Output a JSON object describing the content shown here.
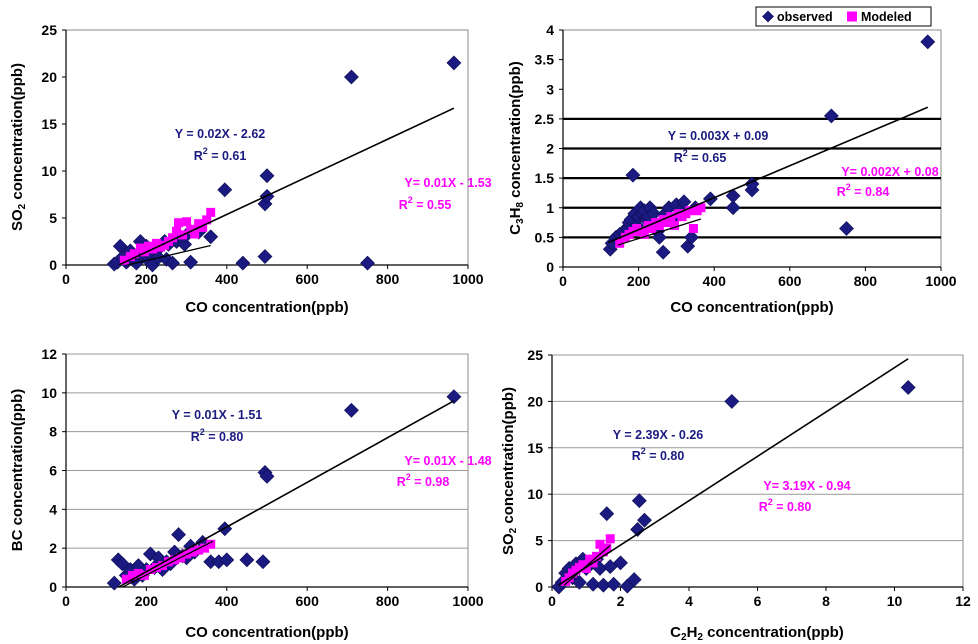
{
  "legend": {
    "items": [
      {
        "label": "observed",
        "color": "#1a1a80",
        "marker": "diamond"
      },
      {
        "label": "Modeled",
        "color": "#ff00ff",
        "marker": "square"
      }
    ]
  },
  "colors": {
    "observed": "#1a1a80",
    "modeled": "#ff00ff",
    "fit": "#000000",
    "gridline": "#000000"
  },
  "chart_data": [
    {
      "id": "so2-vs-co",
      "type": "scatter",
      "xlabel": "CO concentration(ppb)",
      "ylabel": {
        "pre": "SO",
        "sub": "2",
        "post": " concentration(ppb)"
      },
      "xlim": [
        0,
        1000
      ],
      "ylim": [
        0,
        25
      ],
      "xticks": [
        0,
        200,
        400,
        600,
        800,
        1000
      ],
      "yticks": [
        0,
        5,
        10,
        15,
        20,
        25
      ],
      "grid": "none",
      "observed": [
        [
          120,
          0.1
        ],
        [
          128,
          0.3
        ],
        [
          135,
          2.0
        ],
        [
          140,
          0.8
        ],
        [
          150,
          0.3
        ],
        [
          155,
          0.5
        ],
        [
          160,
          1.5
        ],
        [
          165,
          0.6
        ],
        [
          175,
          0.2
        ],
        [
          185,
          2.5
        ],
        [
          190,
          1.0
        ],
        [
          200,
          2.0
        ],
        [
          205,
          0.5
        ],
        [
          210,
          1.2
        ],
        [
          215,
          0.0
        ],
        [
          225,
          1.5
        ],
        [
          230,
          0.8
        ],
        [
          245,
          2.5
        ],
        [
          250,
          0.6
        ],
        [
          255,
          2.2
        ],
        [
          265,
          0.2
        ],
        [
          275,
          2.5
        ],
        [
          285,
          3.0
        ],
        [
          295,
          2.2
        ],
        [
          300,
          3.2
        ],
        [
          310,
          0.3
        ],
        [
          330,
          3.5
        ],
        [
          360,
          3.0
        ],
        [
          395,
          8.0
        ],
        [
          440,
          0.2
        ],
        [
          495,
          6.5
        ],
        [
          500,
          9.5
        ],
        [
          500,
          7.3
        ],
        [
          495,
          0.9
        ],
        [
          710,
          20.0
        ],
        [
          750,
          0.2
        ],
        [
          965,
          21.5
        ]
      ],
      "modeled": [
        [
          145,
          0.5
        ],
        [
          160,
          0.9
        ],
        [
          170,
          1.2
        ],
        [
          185,
          1.8
        ],
        [
          195,
          1.4
        ],
        [
          205,
          2.0
        ],
        [
          215,
          1.7
        ],
        [
          225,
          2.3
        ],
        [
          235,
          1.9
        ],
        [
          245,
          2.1
        ],
        [
          255,
          2.5
        ],
        [
          265,
          2.9
        ],
        [
          275,
          3.6
        ],
        [
          280,
          4.5
        ],
        [
          290,
          3.2
        ],
        [
          300,
          4.6
        ],
        [
          310,
          3.8
        ],
        [
          320,
          3.3
        ],
        [
          330,
          4.4
        ],
        [
          340,
          4.0
        ],
        [
          350,
          4.8
        ],
        [
          360,
          5.6
        ]
      ],
      "fits": [
        {
          "series": "observed",
          "slope": 0.02,
          "intercept": -2.62,
          "equation": "Y = 0.02X - 2.62",
          "r2_label": "R",
          "r2_sup": "2",
          "r2_value": " = 0.61",
          "from": 130,
          "to": 965
        },
        {
          "series": "modeled",
          "slope": 0.01,
          "intercept": -1.53,
          "equation": "Y= 0.01X - 1.53",
          "r2_label": "R",
          "r2_sup": "2",
          "r2_value": " = 0.55",
          "from": 140,
          "to": 360
        }
      ]
    },
    {
      "id": "c3h8-vs-co",
      "type": "scatter",
      "xlabel": "CO concentration(ppb)",
      "ylabel": {
        "pre": "C",
        "sub": "3",
        "mid": "H",
        "sub2": "8",
        "post": " concentration(ppb)"
      },
      "xlim": [
        0,
        1000
      ],
      "ylim": [
        0,
        4
      ],
      "xticks": [
        0,
        200,
        400,
        600,
        800,
        1000
      ],
      "yticks": [
        0,
        0.5,
        1,
        1.5,
        2,
        2.5,
        3,
        3.5,
        4
      ],
      "grid": "horizontal-bold-0.5-2.5",
      "observed": [
        [
          125,
          0.3
        ],
        [
          130,
          0.4
        ],
        [
          140,
          0.5
        ],
        [
          150,
          0.55
        ],
        [
          160,
          0.6
        ],
        [
          170,
          0.65
        ],
        [
          175,
          0.75
        ],
        [
          180,
          0.8
        ],
        [
          185,
          1.55
        ],
        [
          190,
          0.9
        ],
        [
          195,
          0.7
        ],
        [
          200,
          0.85
        ],
        [
          205,
          1.0
        ],
        [
          210,
          0.9
        ],
        [
          215,
          0.95
        ],
        [
          220,
          0.8
        ],
        [
          225,
          0.85
        ],
        [
          230,
          1.0
        ],
        [
          240,
          0.9
        ],
        [
          250,
          0.6
        ],
        [
          255,
          0.5
        ],
        [
          265,
          0.25
        ],
        [
          270,
          0.9
        ],
        [
          280,
          1.0
        ],
        [
          290,
          0.8
        ],
        [
          300,
          1.05
        ],
        [
          310,
          0.95
        ],
        [
          320,
          1.1
        ],
        [
          330,
          0.35
        ],
        [
          340,
          0.5
        ],
        [
          350,
          1.0
        ],
        [
          390,
          1.15
        ],
        [
          450,
          1.0
        ],
        [
          450,
          1.2
        ],
        [
          500,
          1.3
        ],
        [
          500,
          1.4
        ],
        [
          710,
          2.55
        ],
        [
          750,
          0.65
        ],
        [
          965,
          3.8
        ]
      ],
      "modeled": [
        [
          150,
          0.4
        ],
        [
          165,
          0.5
        ],
        [
          175,
          0.55
        ],
        [
          185,
          0.6
        ],
        [
          195,
          0.65
        ],
        [
          205,
          0.6
        ],
        [
          215,
          0.55
        ],
        [
          225,
          0.7
        ],
        [
          235,
          0.65
        ],
        [
          245,
          0.75
        ],
        [
          255,
          0.7
        ],
        [
          265,
          0.8
        ],
        [
          275,
          0.75
        ],
        [
          285,
          0.85
        ],
        [
          295,
          0.7
        ],
        [
          305,
          0.9
        ],
        [
          315,
          0.85
        ],
        [
          325,
          0.9
        ],
        [
          335,
          0.95
        ],
        [
          345,
          0.65
        ],
        [
          355,
          0.95
        ],
        [
          365,
          1.0
        ]
      ],
      "fits": [
        {
          "series": "observed",
          "slope": 0.0027,
          "intercept": 0.09,
          "equation": "Y = 0.003X + 0.09",
          "r2_label": "R",
          "r2_sup": "2",
          "r2_value": " = 0.65",
          "from": 120,
          "to": 965
        },
        {
          "series": "modeled",
          "slope": 0.002,
          "intercept": 0.08,
          "equation": "Y= 0.002X + 0.08",
          "r2_label": "R",
          "r2_sup": "2",
          "r2_value": " = 0.84",
          "from": 145,
          "to": 365
        }
      ]
    },
    {
      "id": "bc-vs-co",
      "type": "scatter",
      "xlabel": "CO concentration(ppb)",
      "ylabel": {
        "pre": "BC concentration(ppb)"
      },
      "xlim": [
        0,
        1000
      ],
      "ylim": [
        0,
        12
      ],
      "xticks": [
        0,
        200,
        400,
        600,
        800,
        1000
      ],
      "yticks": [
        0,
        2,
        4,
        6,
        8,
        10,
        12
      ],
      "grid": "horizontal-gray",
      "observed": [
        [
          120,
          0.2
        ],
        [
          130,
          1.4
        ],
        [
          140,
          1.2
        ],
        [
          150,
          0.6
        ],
        [
          160,
          0.9
        ],
        [
          170,
          0.4
        ],
        [
          180,
          1.1
        ],
        [
          190,
          0.6
        ],
        [
          200,
          0.9
        ],
        [
          210,
          1.7
        ],
        [
          220,
          1.0
        ],
        [
          230,
          1.5
        ],
        [
          240,
          0.9
        ],
        [
          250,
          1.3
        ],
        [
          260,
          1.2
        ],
        [
          270,
          1.8
        ],
        [
          280,
          2.7
        ],
        [
          290,
          1.6
        ],
        [
          300,
          1.5
        ],
        [
          310,
          2.1
        ],
        [
          320,
          1.8
        ],
        [
          340,
          2.3
        ],
        [
          360,
          1.3
        ],
        [
          380,
          1.3
        ],
        [
          395,
          3.0
        ],
        [
          400,
          1.4
        ],
        [
          450,
          1.4
        ],
        [
          490,
          1.3
        ],
        [
          495,
          5.9
        ],
        [
          500,
          5.7
        ],
        [
          710,
          9.1
        ],
        [
          965,
          9.8
        ]
      ],
      "modeled": [
        [
          150,
          0.4
        ],
        [
          165,
          0.6
        ],
        [
          180,
          0.7
        ],
        [
          195,
          0.6
        ],
        [
          210,
          0.9
        ],
        [
          225,
          1.0
        ],
        [
          240,
          1.1
        ],
        [
          255,
          1.3
        ],
        [
          270,
          1.4
        ],
        [
          285,
          1.5
        ],
        [
          300,
          1.7
        ],
        [
          315,
          1.8
        ],
        [
          330,
          1.9
        ],
        [
          345,
          2.0
        ],
        [
          360,
          2.2
        ]
      ],
      "fits": [
        {
          "series": "observed",
          "slope": 0.0115,
          "intercept": -1.51,
          "equation": "Y = 0.01X - 1.51",
          "r2_label": "R",
          "r2_sup": "2",
          "r2_value": " = 0.80",
          "from": 130,
          "to": 965
        },
        {
          "series": "modeled",
          "slope": 0.0105,
          "intercept": -1.48,
          "equation": "Y= 0.01X - 1.48",
          "r2_label": "R",
          "r2_sup": "2",
          "r2_value": " = 0.98",
          "from": 140,
          "to": 365
        }
      ]
    },
    {
      "id": "so2-vs-c2h2",
      "type": "scatter",
      "xlabel": {
        "pre": "C",
        "sub": "2",
        "mid": "H",
        "sub2": "2",
        "post": " concentration(ppb)"
      },
      "ylabel": {
        "pre": "SO",
        "sub": "2",
        "post": " concentration(ppb)"
      },
      "xlim": [
        0,
        12
      ],
      "ylim": [
        0,
        25
      ],
      "xticks": [
        0,
        2,
        4,
        6,
        8,
        10,
        12
      ],
      "yticks": [
        0,
        5,
        10,
        15,
        20,
        25
      ],
      "grid": "horizontal-gray",
      "observed": [
        [
          0.2,
          0.0
        ],
        [
          0.3,
          0.5
        ],
        [
          0.4,
          1.5
        ],
        [
          0.5,
          2.0
        ],
        [
          0.6,
          1.0
        ],
        [
          0.7,
          2.5
        ],
        [
          0.8,
          0.5
        ],
        [
          0.9,
          3.0
        ],
        [
          1.0,
          2.0
        ],
        [
          1.1,
          2.5
        ],
        [
          1.2,
          0.3
        ],
        [
          1.3,
          3.0
        ],
        [
          1.4,
          2.0
        ],
        [
          1.5,
          0.2
        ],
        [
          1.6,
          7.9
        ],
        [
          1.7,
          2.2
        ],
        [
          1.8,
          0.3
        ],
        [
          2.0,
          2.6
        ],
        [
          2.2,
          0.1
        ],
        [
          2.4,
          0.8
        ],
        [
          2.5,
          6.2
        ],
        [
          2.55,
          9.3
        ],
        [
          2.7,
          7.2
        ],
        [
          5.25,
          20.0
        ],
        [
          10.4,
          21.5
        ]
      ],
      "modeled": [
        [
          0.4,
          0.6
        ],
        [
          0.5,
          1.0
        ],
        [
          0.6,
          1.5
        ],
        [
          0.7,
          1.8
        ],
        [
          0.8,
          2.1
        ],
        [
          0.9,
          2.4
        ],
        [
          1.0,
          2.0
        ],
        [
          1.1,
          3.0
        ],
        [
          1.2,
          2.6
        ],
        [
          1.3,
          3.3
        ],
        [
          1.4,
          4.6
        ],
        [
          1.5,
          3.8
        ],
        [
          1.6,
          4.2
        ],
        [
          1.7,
          5.2
        ]
      ],
      "fits": [
        {
          "series": "observed",
          "slope": 2.39,
          "intercept": -0.26,
          "equation": "Y = 2.39X - 0.26",
          "r2_label": "R",
          "r2_sup": "2",
          "r2_value": " = 0.80",
          "from": 0.2,
          "to": 10.4
        },
        {
          "series": "modeled",
          "slope": 3.19,
          "intercept": -0.94,
          "equation": "Y= 3.19X - 0.94",
          "r2_label": "R",
          "r2_sup": "2",
          "r2_value": " = 0.80",
          "from": 0.35,
          "to": 1.7
        }
      ]
    }
  ]
}
